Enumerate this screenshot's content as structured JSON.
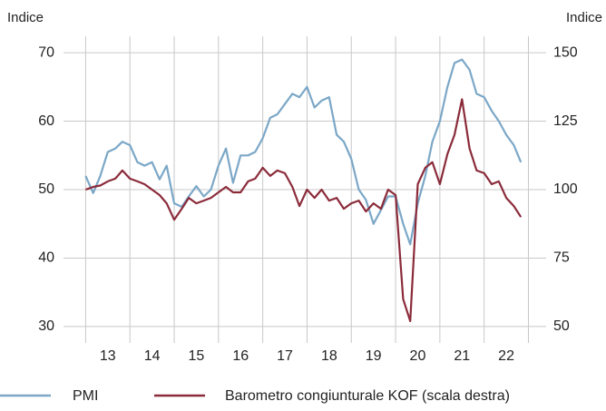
{
  "chart_data": {
    "type": "line",
    "y_axis_label": "Indice",
    "y2_axis_label": "Indice",
    "x": [
      2013.0,
      2013.17,
      2013.33,
      2013.5,
      2013.67,
      2013.83,
      2014.0,
      2014.17,
      2014.33,
      2014.5,
      2014.67,
      2014.83,
      2015.0,
      2015.17,
      2015.33,
      2015.5,
      2015.67,
      2015.83,
      2016.0,
      2016.17,
      2016.33,
      2016.5,
      2016.67,
      2016.83,
      2017.0,
      2017.17,
      2017.33,
      2017.5,
      2017.67,
      2017.83,
      2018.0,
      2018.17,
      2018.33,
      2018.5,
      2018.67,
      2018.83,
      2019.0,
      2019.17,
      2019.33,
      2019.5,
      2019.67,
      2019.83,
      2020.0,
      2020.17,
      2020.33,
      2020.5,
      2020.67,
      2020.83,
      2021.0,
      2021.17,
      2021.33,
      2021.5,
      2021.67,
      2021.83,
      2022.0,
      2022.17,
      2022.33,
      2022.5,
      2022.67,
      2022.83
    ],
    "series": [
      {
        "name": "PMI",
        "color": "#7ba7c7",
        "values": [
          52,
          49.5,
          52,
          55.5,
          56,
          57,
          56.5,
          54,
          53.5,
          54,
          51.5,
          53.5,
          48,
          47.5,
          49,
          50.5,
          49,
          50,
          53.5,
          56,
          51,
          55,
          55,
          55.5,
          57.5,
          60.5,
          61,
          62.5,
          64,
          63.5,
          65,
          62,
          63,
          63.5,
          58,
          57,
          54.5,
          50,
          48.5,
          45,
          47,
          49,
          49,
          45,
          42,
          48,
          52,
          57,
          60,
          65,
          68.5,
          69,
          67.5,
          64,
          63.5,
          61.5,
          60,
          58,
          56.5,
          54
        ]
      },
      {
        "name": "Barometro congiunturale KOF (scala destra)",
        "color": "#8b2b3a",
        "axis": "y2",
        "values": [
          100,
          101,
          101.5,
          103,
          104,
          107,
          104,
          103,
          102,
          100,
          98,
          95,
          89,
          93,
          97,
          95,
          96,
          97,
          99,
          101,
          99,
          99,
          103,
          104,
          108,
          105,
          107,
          106,
          101,
          94,
          100,
          97,
          100,
          96,
          97,
          93,
          95,
          96,
          92,
          95,
          93,
          100,
          98,
          60,
          52,
          102,
          108,
          110,
          102,
          113,
          120,
          133,
          115,
          107,
          106,
          102,
          103,
          97,
          94,
          90
        ]
      }
    ],
    "xlim": [
      2012.5,
      2023.4
    ],
    "xticks": [
      {
        "value": 2013.5,
        "label": "13"
      },
      {
        "value": 2014.5,
        "label": "14"
      },
      {
        "value": 2015.5,
        "label": "15"
      },
      {
        "value": 2016.5,
        "label": "16"
      },
      {
        "value": 2017.5,
        "label": "17"
      },
      {
        "value": 2018.5,
        "label": "18"
      },
      {
        "value": 2019.5,
        "label": "19"
      },
      {
        "value": 2020.5,
        "label": "20"
      },
      {
        "value": 2021.5,
        "label": "21"
      },
      {
        "value": 2022.5,
        "label": "22"
      }
    ],
    "x_gridlines": [
      2013,
      2014,
      2015,
      2016,
      2017,
      2018,
      2019,
      2020,
      2021,
      2022,
      2023
    ],
    "ylim": [
      28,
      72
    ],
    "yticks": [
      30,
      40,
      50,
      60,
      70
    ],
    "y2lim": [
      45,
      155
    ],
    "y2ticks": [
      50,
      75,
      100,
      125,
      150
    ],
    "grid": true
  }
}
